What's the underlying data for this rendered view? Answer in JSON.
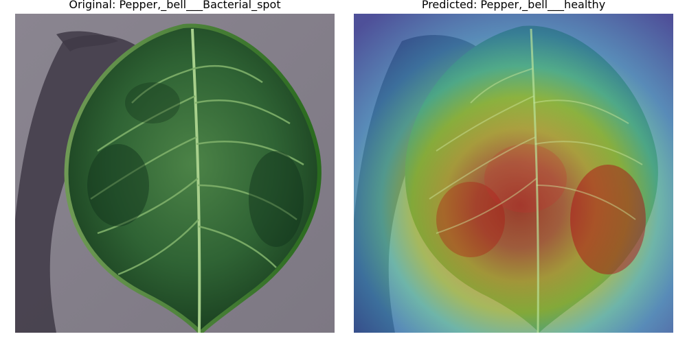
{
  "panels": {
    "original": {
      "title": "Original: Pepper,_bell___Bacterial_spot",
      "image_icon": "leaf-photo"
    },
    "predicted": {
      "title": "Predicted: Pepper,_bell___healthy",
      "image_icon": "leaf-gradcam-heatmap"
    }
  },
  "colors": {
    "background_surface": "#85808a",
    "shadow": "#3f3a46",
    "leaf_dark": "#1f4a26",
    "leaf_mid": "#3f7a3d",
    "vein": "#9fcf86",
    "heat_cold": "#2a2f9e",
    "heat_cool": "#3fb8d6",
    "heat_warm": "#e3d23a",
    "heat_hot": "#c8141a"
  }
}
